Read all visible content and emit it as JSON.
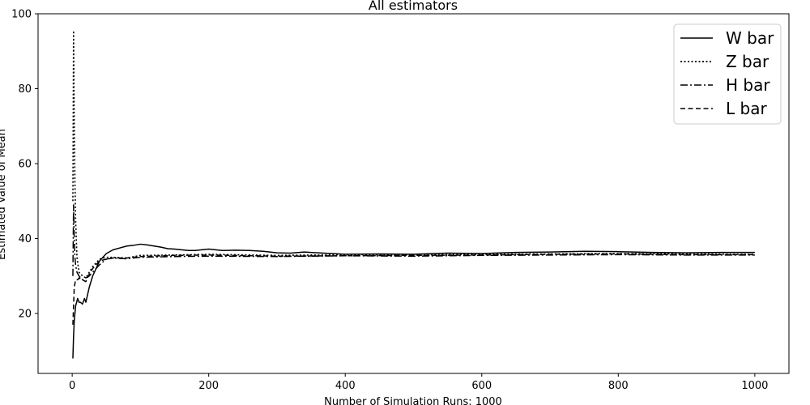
{
  "chart_data": {
    "type": "line",
    "title": "All estimators",
    "xlabel": "Number of Simulation Runs: 1000",
    "ylabel": "Estimated Value of Mean",
    "xlim": [
      -50,
      1050
    ],
    "ylim": [
      4,
      100
    ],
    "xticks": [
      0,
      200,
      400,
      600,
      800,
      1000
    ],
    "yticks": [
      20,
      40,
      60,
      80,
      100
    ],
    "legend_position": "top-right",
    "grid": false,
    "series": [
      {
        "name": "W bar",
        "style": "solid",
        "x": [
          1,
          2,
          3,
          5,
          8,
          10,
          12,
          15,
          18,
          20,
          25,
          30,
          35,
          40,
          45,
          50,
          60,
          70,
          80,
          90,
          100,
          110,
          120,
          130,
          140,
          150,
          160,
          170,
          180,
          200,
          220,
          240,
          260,
          280,
          300,
          320,
          340,
          360,
          380,
          400,
          450,
          500,
          550,
          600,
          650,
          700,
          750,
          800,
          850,
          900,
          950,
          1000
        ],
        "y": [
          8,
          14,
          18,
          22,
          24,
          23,
          23,
          22.5,
          24,
          23,
          27,
          30,
          32,
          34,
          35,
          36,
          37,
          37.5,
          38,
          38.2,
          38.5,
          38.3,
          38,
          37.7,
          37.3,
          37.2,
          37.0,
          36.8,
          36.8,
          37.2,
          36.8,
          36.9,
          36.8,
          36.6,
          36.2,
          36.1,
          36.4,
          36.2,
          36.0,
          35.8,
          35.9,
          35.8,
          36.1,
          36.0,
          36.3,
          36.4,
          36.6,
          36.5,
          36.3,
          36.2,
          36.3,
          36.3
        ]
      },
      {
        "name": "Z bar",
        "style": "dotted",
        "x": [
          1,
          2,
          3,
          4,
          5,
          7,
          10,
          15,
          20,
          25,
          30,
          40,
          50,
          60,
          80,
          100,
          150,
          200,
          300,
          400,
          500,
          600,
          700,
          800,
          900,
          1000
        ],
        "y": [
          50,
          95.5,
          70,
          55,
          45,
          35,
          31,
          30,
          29.5,
          31,
          32.5,
          34.5,
          35,
          35,
          34.8,
          35.5,
          35.6,
          35.8,
          35.5,
          35.7,
          35.6,
          35.8,
          35.9,
          36.0,
          35.9,
          35.8
        ]
      },
      {
        "name": "H bar",
        "style": "dashdot",
        "x": [
          1,
          2,
          3,
          4,
          5,
          7,
          10,
          15,
          20,
          25,
          30,
          40,
          50,
          60,
          80,
          100,
          150,
          200,
          300,
          400,
          500,
          600,
          700,
          800,
          900,
          1000
        ],
        "y": [
          30,
          49,
          40,
          35,
          33,
          31,
          30,
          29,
          29.5,
          30,
          31,
          33,
          34.5,
          34.8,
          34.6,
          35.0,
          35.2,
          35.3,
          35.2,
          35.4,
          35.3,
          35.5,
          35.6,
          35.7,
          35.6,
          35.6
        ]
      },
      {
        "name": "L bar",
        "style": "dashed",
        "x": [
          1,
          2,
          3,
          5,
          8,
          10,
          15,
          20,
          25,
          30,
          40,
          50,
          60,
          80,
          100,
          150,
          200,
          300,
          400,
          500,
          600,
          700,
          800,
          900,
          1000
        ],
        "y": [
          17,
          22,
          27,
          29,
          29,
          29.5,
          29,
          28.5,
          30.5,
          32,
          34,
          34.5,
          34.8,
          34.8,
          35.2,
          35.5,
          35.6,
          35.3,
          35.4,
          35.5,
          35.6,
          35.8,
          35.9,
          35.7,
          35.7
        ]
      }
    ]
  }
}
